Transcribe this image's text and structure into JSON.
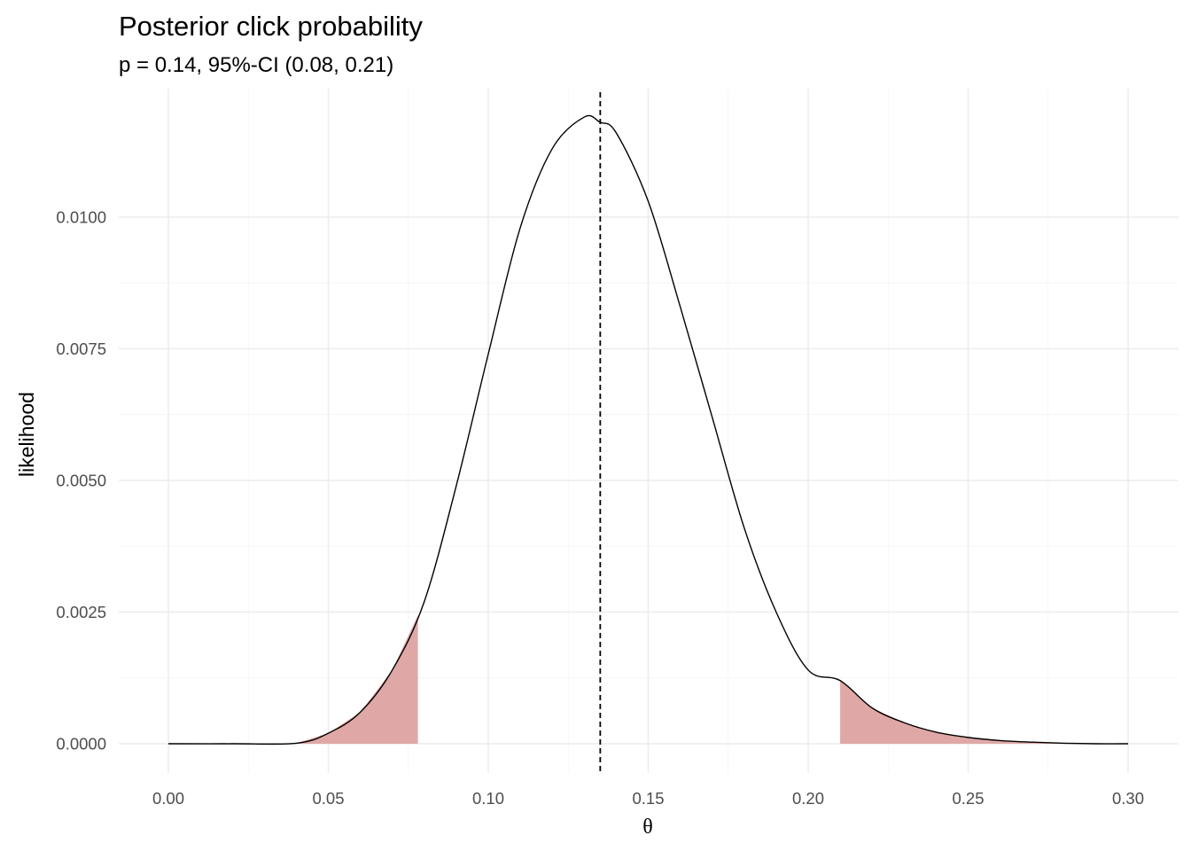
{
  "chart_data": {
    "type": "area",
    "title": "Posterior click probability",
    "subtitle": "p = 0.14, 95%-CI (0.08, 0.21)",
    "xlabel": "θ",
    "ylabel": "likelihood",
    "xlim": [
      0.0,
      0.3
    ],
    "ylim": [
      0.0,
      0.0118
    ],
    "x_ticks": [
      "0.00",
      "0.05",
      "0.10",
      "0.15",
      "0.20",
      "0.25",
      "0.30"
    ],
    "y_ticks": [
      "0.0000",
      "0.0025",
      "0.0050",
      "0.0075",
      "0.0100"
    ],
    "grid": true,
    "series": [
      {
        "x": [
          0.0,
          0.02,
          0.04,
          0.05,
          0.06,
          0.07,
          0.08,
          0.09,
          0.1,
          0.11,
          0.12,
          0.13,
          0.135,
          0.14,
          0.15,
          0.16,
          0.17,
          0.18,
          0.19,
          0.2,
          0.21,
          0.22,
          0.23,
          0.24,
          0.25,
          0.26,
          0.27,
          0.28,
          0.29,
          0.3
        ],
        "values": [
          0.0,
          0.0,
          1e-05,
          0.0002,
          0.0006,
          0.0014,
          0.0027,
          0.0049,
          0.0074,
          0.0098,
          0.0113,
          0.0119,
          0.0118,
          0.0116,
          0.0103,
          0.0083,
          0.0062,
          0.0041,
          0.0025,
          0.0014,
          0.0012,
          0.00068,
          0.0004,
          0.00022,
          0.00012,
          6e-05,
          3e-05,
          1e-05,
          0.0,
          0.0
        ]
      }
    ],
    "shaded_tails": [
      [
        0.0,
        0.078
      ],
      [
        0.21,
        0.3
      ]
    ],
    "estimate_line_x": 0.135,
    "colors": {
      "curve": "#000000",
      "tail_fill": "#dfa8a6",
      "grid": "#ebebeb",
      "estimate_line": "#000000"
    }
  }
}
